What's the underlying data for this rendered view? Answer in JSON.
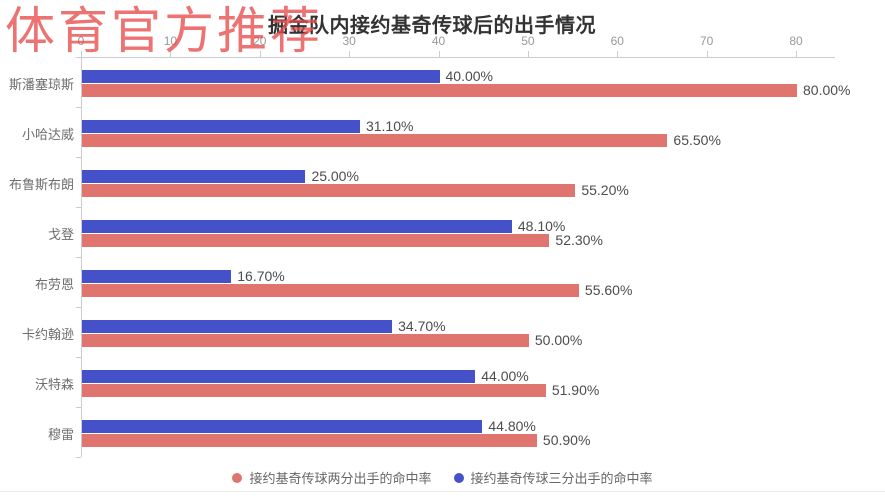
{
  "watermark": "体育官方推荐",
  "chart_data": {
    "type": "bar",
    "orientation": "horizontal",
    "title": "掘金队内接约基奇传球后的出手情况",
    "categories": [
      "斯潘塞琼斯",
      "小哈达威",
      "布鲁斯布朗",
      "戈登",
      "布劳恩",
      "卡约翰逊",
      "沃特森",
      "穆雷"
    ],
    "series": [
      {
        "name": "接约基奇传球两分出手的命中率",
        "color": "#e0746e",
        "values": [
          80.0,
          65.5,
          55.2,
          52.3,
          55.6,
          50.0,
          51.9,
          50.9
        ],
        "labels": [
          "80.00%",
          "65.50%",
          "55.20%",
          "52.30%",
          "55.60%",
          "50.00%",
          "51.90%",
          "50.90%"
        ]
      },
      {
        "name": "接约基奇传球三分出手的命中率",
        "color": "#4451c9",
        "values": [
          40.0,
          31.1,
          25.0,
          48.1,
          16.7,
          34.7,
          44.0,
          44.8
        ],
        "labels": [
          "40.00%",
          "31.10%",
          "25.00%",
          "48.10%",
          "16.70%",
          "34.70%",
          "44.00%",
          "44.80%"
        ]
      }
    ],
    "x_ticks": [
      0,
      10,
      20,
      30,
      40,
      50,
      60,
      70,
      80
    ],
    "xlim": [
      0,
      84.4
    ],
    "grid": false,
    "legend_position": "bottom",
    "bar_stack_order": [
      1,
      0
    ],
    "colors": {
      "axis": "#cccccc",
      "tick_label": "#999999",
      "category_label": "#6e6e6e",
      "value_label": "#4d4d4d",
      "title": "#333333",
      "watermark": "#e84a4a"
    }
  }
}
